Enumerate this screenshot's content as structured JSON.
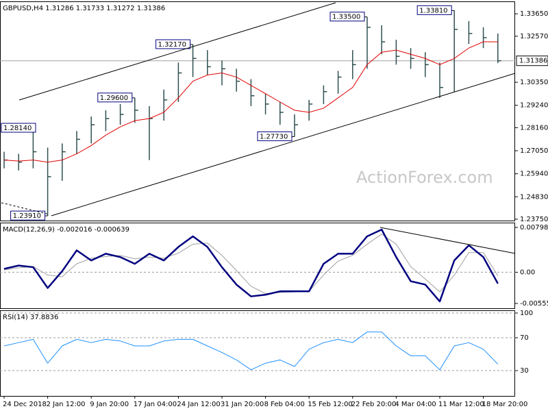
{
  "chart_data": [
    {
      "type": "ohlc",
      "title": "GBPUSD,H4  1.31286 1.31733 1.31272 1.31386",
      "watermark": "ActionForex.com",
      "color": "#2f4f4f",
      "categories": [
        "24 Dec 2018",
        null,
        null,
        "2 Jan 12:00",
        null,
        null,
        "9 Jan 20:00",
        null,
        null,
        "17 Jan 04:00",
        null,
        null,
        "24 Jan 12:00",
        null,
        null,
        "31 Jan 20:00",
        null,
        null,
        "8 Feb 04:00",
        null,
        null,
        "15 Feb 12:00",
        null,
        null,
        "22 Feb 20:00",
        null,
        null,
        "4 Mar 04:00",
        null,
        null,
        "11 Mar 12:00",
        null,
        null,
        "18 Mar 20:00",
        null
      ],
      "high": [
        1.27,
        1.269,
        1.2814,
        1.272,
        1.274,
        1.28,
        1.287,
        1.29,
        1.293,
        1.296,
        1.292,
        1.3,
        1.313,
        1.3217,
        1.319,
        1.314,
        1.31,
        1.305,
        1.298,
        1.294,
        1.288,
        1.295,
        1.302,
        1.309,
        1.319,
        1.335,
        1.331,
        1.324,
        1.32,
        1.318,
        1.313,
        1.3381,
        1.333,
        1.33,
        1.327
      ],
      "low": [
        1.262,
        1.261,
        1.262,
        1.2391,
        1.256,
        1.269,
        1.274,
        1.28,
        1.283,
        1.284,
        1.266,
        1.285,
        1.294,
        1.306,
        1.307,
        1.302,
        1.299,
        1.292,
        1.288,
        1.283,
        1.2773,
        1.285,
        1.293,
        1.298,
        1.305,
        1.31,
        1.317,
        1.312,
        1.31,
        1.306,
        1.296,
        1.299,
        1.322,
        1.32,
        1.31272
      ],
      "close": [
        1.266,
        1.265,
        1.27,
        1.258,
        1.27,
        1.276,
        1.283,
        1.286,
        1.288,
        1.29,
        1.286,
        1.295,
        1.308,
        1.315,
        1.311,
        1.31,
        1.304,
        1.297,
        1.293,
        1.289,
        1.283,
        1.293,
        1.299,
        1.306,
        1.312,
        1.33,
        1.323,
        1.316,
        1.315,
        1.312,
        1.301,
        1.329,
        1.327,
        1.325,
        1.31386
      ],
      "moving_average": {
        "color": "#e00000",
        "values": [
          1.266,
          1.2655,
          1.266,
          1.265,
          1.266,
          1.269,
          1.273,
          1.278,
          1.282,
          1.285,
          1.286,
          1.289,
          1.296,
          1.304,
          1.307,
          1.308,
          1.306,
          1.302,
          1.298,
          1.294,
          1.29,
          1.289,
          1.291,
          1.296,
          1.301,
          1.312,
          1.318,
          1.319,
          1.317,
          1.315,
          1.312,
          1.315,
          1.32,
          1.323,
          1.323
        ]
      },
      "annotations": [
        {
          "value": 1.2391,
          "label": "1.23910"
        },
        {
          "value": 1.2814,
          "label": "1.28140"
        },
        {
          "value": 1.3217,
          "label": "1.32170"
        },
        {
          "value": 1.2773,
          "label": "1.27730"
        },
        {
          "value": 1.335,
          "label": "1.33500"
        },
        {
          "value": 1.296,
          "label": "1.29600"
        },
        {
          "value": 1.3381,
          "label": "1.33810"
        }
      ],
      "last_price": {
        "value": 1.31386,
        "label": "1.31386"
      },
      "ylim": [
        1.23683,
        1.3425
      ],
      "yticks": [
        {
          "value": 1.3365,
          "label": "1.33650"
        },
        {
          "value": 1.3257,
          "label": "1.32570"
        },
        {
          "value": 1.3035,
          "label": "1.30350"
        },
        {
          "value": 1.2924,
          "label": "1.29240"
        },
        {
          "value": 1.2816,
          "label": "1.28160"
        },
        {
          "value": 1.2705,
          "label": "1.27050"
        },
        {
          "value": 1.2594,
          "label": "1.25940"
        },
        {
          "value": 1.2483,
          "label": "1.24830"
        },
        {
          "value": 1.2375,
          "label": "1.23750"
        }
      ]
    },
    {
      "type": "line",
      "title": "MACD(12,26,9) -0.002016 -0.000639",
      "series": [
        {
          "color": "#000080",
          "width": 2.5,
          "values": [
            0.0006,
            0.0012,
            0.0009,
            -0.0028,
            0.0002,
            0.0039,
            0.0021,
            0.0033,
            0.0027,
            0.0015,
            0.0033,
            0.0021,
            0.0045,
            0.0064,
            0.0045,
            0.0009,
            -0.0022,
            -0.0043,
            -0.004,
            -0.0034,
            -0.0034,
            -0.0034,
            0.0015,
            0.0033,
            0.0033,
            0.0064,
            0.0076,
            0.0027,
            -0.0016,
            -0.0022,
            -0.0052,
            0.0021,
            0.0048,
            0.0027,
            -0.002016
          ]
        },
        {
          "color": "#a0a0a0",
          "width": 1,
          "values": [
            0.0004,
            0.0008,
            0.001,
            -0.0005,
            -0.0008,
            0.0015,
            0.0025,
            0.0028,
            0.003,
            0.0024,
            0.0027,
            0.0025,
            0.0034,
            0.005,
            0.0052,
            0.003,
            0.0003,
            -0.0025,
            -0.0038,
            -0.0036,
            -0.0035,
            -0.0034,
            -0.0005,
            0.002,
            0.003,
            0.005,
            0.0068,
            0.005,
            0.001,
            -0.0012,
            -0.0035,
            -0.0005,
            0.0035,
            0.0035,
            -0.000639
          ]
        }
      ],
      "ylim": [
        -0.006413,
        0.008837
      ],
      "yticks": [
        0.007983,
        {
          "value": 0,
          "label": "0.00"
        },
        -0.005559
      ]
    },
    {
      "type": "line",
      "title": "RSI(14) 37.8836",
      "grid": true,
      "series": [
        {
          "color": "#1e90ff",
          "width": 1,
          "values": [
            60,
            64,
            68,
            39,
            60,
            68,
            64,
            68,
            66,
            60,
            60,
            66,
            68,
            68,
            60,
            52,
            43,
            31,
            39,
            43,
            35,
            56,
            64,
            68,
            64,
            77,
            77,
            60,
            48,
            48,
            31,
            60,
            64,
            56,
            37.8836
          ]
        }
      ],
      "ylim": [
        -0.8,
        103.3
      ],
      "yticks": [
        100,
        70,
        30
      ]
    }
  ]
}
